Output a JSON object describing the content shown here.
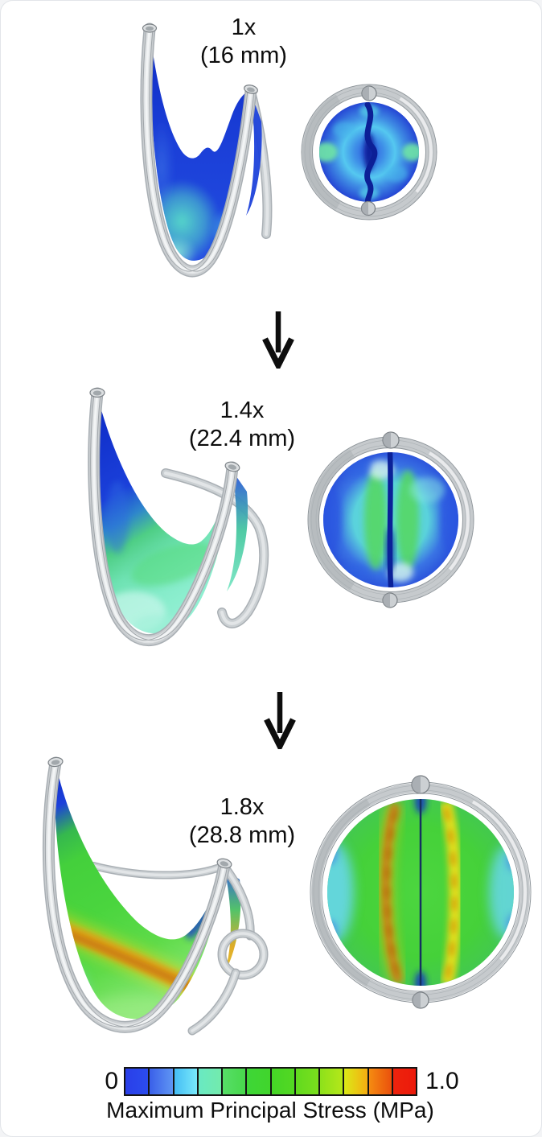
{
  "figure": {
    "rows": [
      {
        "scale_label": "1x",
        "diameter_label": "(16 mm)"
      },
      {
        "scale_label": "1.4x",
        "diameter_label": "(22.4 mm)"
      },
      {
        "scale_label": "1.8x",
        "diameter_label": "(28.8 mm)"
      }
    ]
  },
  "colorbar": {
    "min_label": "0",
    "max_label": "1.0",
    "title": "Maximum Principal Stress (MPa)",
    "segments": [
      {
        "from": "#2a3fe9",
        "to": "#2b4cee"
      },
      {
        "from": "#3a60e9",
        "to": "#5f95f3"
      },
      {
        "from": "#45bdf4",
        "to": "#79e9fb"
      },
      {
        "from": "#69e9c3",
        "to": "#73ebac"
      },
      {
        "from": "#56de67",
        "to": "#48d84c"
      },
      {
        "from": "#3ed637",
        "to": "#41d52c"
      },
      {
        "from": "#45d527",
        "to": "#53d822"
      },
      {
        "from": "#61da1f",
        "to": "#7bdf1d"
      },
      {
        "from": "#8de11b",
        "to": "#b4e719"
      },
      {
        "from": "#dbea17",
        "to": "#f5ad11"
      },
      {
        "from": "#f58b11",
        "to": "#ea500d"
      },
      {
        "from": "#ee230d",
        "to": "#ec1a0b"
      }
    ]
  }
}
